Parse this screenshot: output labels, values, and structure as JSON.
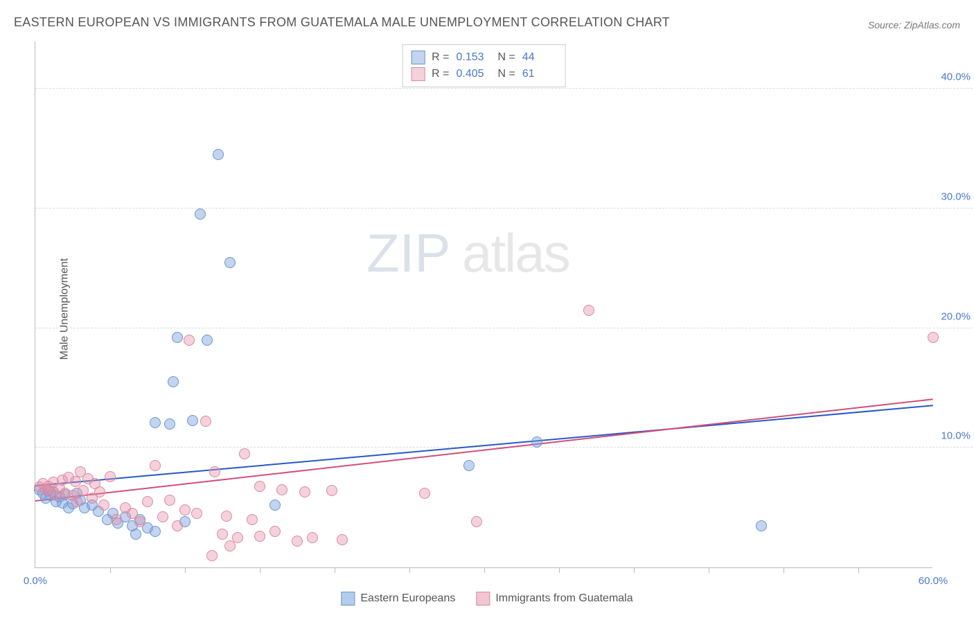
{
  "title": "EASTERN EUROPEAN VS IMMIGRANTS FROM GUATEMALA MALE UNEMPLOYMENT CORRELATION CHART",
  "source": "Source: ZipAtlas.com",
  "watermark": {
    "part1": "ZIP",
    "part2": "atlas"
  },
  "yaxis_title": "Male Unemployment",
  "plot": {
    "xmin": 0,
    "xmax": 60,
    "ymin": 0,
    "ymax": 44,
    "background": "#ffffff",
    "grid_color": "#dddddd",
    "axis_color": "#bbbbbb"
  },
  "y_ticks": [
    {
      "v": 10,
      "label": "10.0%"
    },
    {
      "v": 20,
      "label": "20.0%"
    },
    {
      "v": 30,
      "label": "30.0%"
    },
    {
      "v": 40,
      "label": "40.0%"
    }
  ],
  "x_ticks": [
    {
      "v": 0,
      "label": "0.0%"
    },
    {
      "v": 60,
      "label": "60.0%"
    }
  ],
  "x_minor_ticks": [
    5,
    10,
    15,
    20,
    25,
    30,
    35,
    40,
    45,
    50,
    55
  ],
  "series": [
    {
      "name": "Eastern Europeans",
      "fill": "rgba(120,160,220,0.45)",
      "stroke": "#6a95d1",
      "trend_color": "#2857c8",
      "r_value": "0.153",
      "n_value": "44",
      "marker_radius": 8,
      "trend": {
        "x1": 0,
        "y1": 6.8,
        "x2": 60,
        "y2": 13.5
      },
      "points": [
        [
          0.3,
          6.5
        ],
        [
          0.5,
          6.2
        ],
        [
          0.7,
          5.8
        ],
        [
          0.9,
          6.4
        ],
        [
          1.0,
          6.0
        ],
        [
          1.2,
          6.3
        ],
        [
          1.4,
          5.5
        ],
        [
          1.6,
          5.9
        ],
        [
          1.8,
          5.4
        ],
        [
          2.0,
          6.1
        ],
        [
          2.2,
          5.0
        ],
        [
          2.5,
          5.3
        ],
        [
          2.8,
          6.2
        ],
        [
          3.0,
          5.6
        ],
        [
          3.3,
          5.0
        ],
        [
          3.8,
          5.2
        ],
        [
          4.2,
          4.7
        ],
        [
          4.8,
          4.0
        ],
        [
          5.2,
          4.5
        ],
        [
          5.5,
          3.7
        ],
        [
          6.0,
          4.2
        ],
        [
          6.5,
          3.5
        ],
        [
          6.7,
          2.8
        ],
        [
          7.0,
          4.0
        ],
        [
          7.5,
          3.3
        ],
        [
          8.0,
          12.1
        ],
        [
          8.0,
          3.0
        ],
        [
          9.0,
          12.0
        ],
        [
          9.2,
          15.5
        ],
        [
          9.5,
          19.2
        ],
        [
          10.0,
          3.8
        ],
        [
          10.5,
          12.3
        ],
        [
          11.0,
          29.5
        ],
        [
          11.5,
          19.0
        ],
        [
          12.2,
          34.5
        ],
        [
          13.0,
          25.5
        ],
        [
          16.0,
          5.2
        ],
        [
          29.0,
          8.5
        ],
        [
          33.5,
          10.5
        ],
        [
          48.5,
          3.5
        ]
      ]
    },
    {
      "name": "Immigrants from Guatemala",
      "fill": "rgba(230,140,165,0.40)",
      "stroke": "#d88aa2",
      "trend_color": "#d14d7a",
      "r_value": "0.405",
      "n_value": "61",
      "marker_radius": 8,
      "trend": {
        "x1": 0,
        "y1": 5.5,
        "x2": 60,
        "y2": 14.0
      },
      "points": [
        [
          0.3,
          6.7
        ],
        [
          0.5,
          7.0
        ],
        [
          0.7,
          6.5
        ],
        [
          0.9,
          6.8
        ],
        [
          1.0,
          6.3
        ],
        [
          1.2,
          7.1
        ],
        [
          1.4,
          6.0
        ],
        [
          1.6,
          6.6
        ],
        [
          1.8,
          7.3
        ],
        [
          2.0,
          6.2
        ],
        [
          2.2,
          7.5
        ],
        [
          2.5,
          6.0
        ],
        [
          2.7,
          7.2
        ],
        [
          2.8,
          5.5
        ],
        [
          3.0,
          8.0
        ],
        [
          3.2,
          6.4
        ],
        [
          3.5,
          7.4
        ],
        [
          3.8,
          5.8
        ],
        [
          4.0,
          7.0
        ],
        [
          4.3,
          6.3
        ],
        [
          4.6,
          5.2
        ],
        [
          5.0,
          7.6
        ],
        [
          5.4,
          4.0
        ],
        [
          6.0,
          5.0
        ],
        [
          6.5,
          4.5
        ],
        [
          7.0,
          3.8
        ],
        [
          7.5,
          5.5
        ],
        [
          8.0,
          8.5
        ],
        [
          8.5,
          4.2
        ],
        [
          9.0,
          5.6
        ],
        [
          9.5,
          3.5
        ],
        [
          10.0,
          4.8
        ],
        [
          10.3,
          19.0
        ],
        [
          10.8,
          4.5
        ],
        [
          11.4,
          12.2
        ],
        [
          11.8,
          1.0
        ],
        [
          12.0,
          8.0
        ],
        [
          12.5,
          2.8
        ],
        [
          12.8,
          4.3
        ],
        [
          13.0,
          1.8
        ],
        [
          13.5,
          2.5
        ],
        [
          14.0,
          9.5
        ],
        [
          14.5,
          4.0
        ],
        [
          15.0,
          2.6
        ],
        [
          15.0,
          6.8
        ],
        [
          16.0,
          3.0
        ],
        [
          16.5,
          6.5
        ],
        [
          17.5,
          2.2
        ],
        [
          18.0,
          6.3
        ],
        [
          18.5,
          2.5
        ],
        [
          19.8,
          6.4
        ],
        [
          20.5,
          2.3
        ],
        [
          26.0,
          6.2
        ],
        [
          29.5,
          3.8
        ],
        [
          37.0,
          21.5
        ],
        [
          60.0,
          19.2
        ]
      ]
    }
  ],
  "bottom_legend": [
    {
      "label": "Eastern Europeans",
      "fill": "rgba(120,160,220,0.55)",
      "stroke": "#6a95d1"
    },
    {
      "label": "Immigrants from Guatemala",
      "fill": "rgba(230,140,165,0.50)",
      "stroke": "#d88aa2"
    }
  ],
  "colors": {
    "title": "#555555",
    "source": "#777777",
    "tick_label": "#4a7ac7"
  }
}
